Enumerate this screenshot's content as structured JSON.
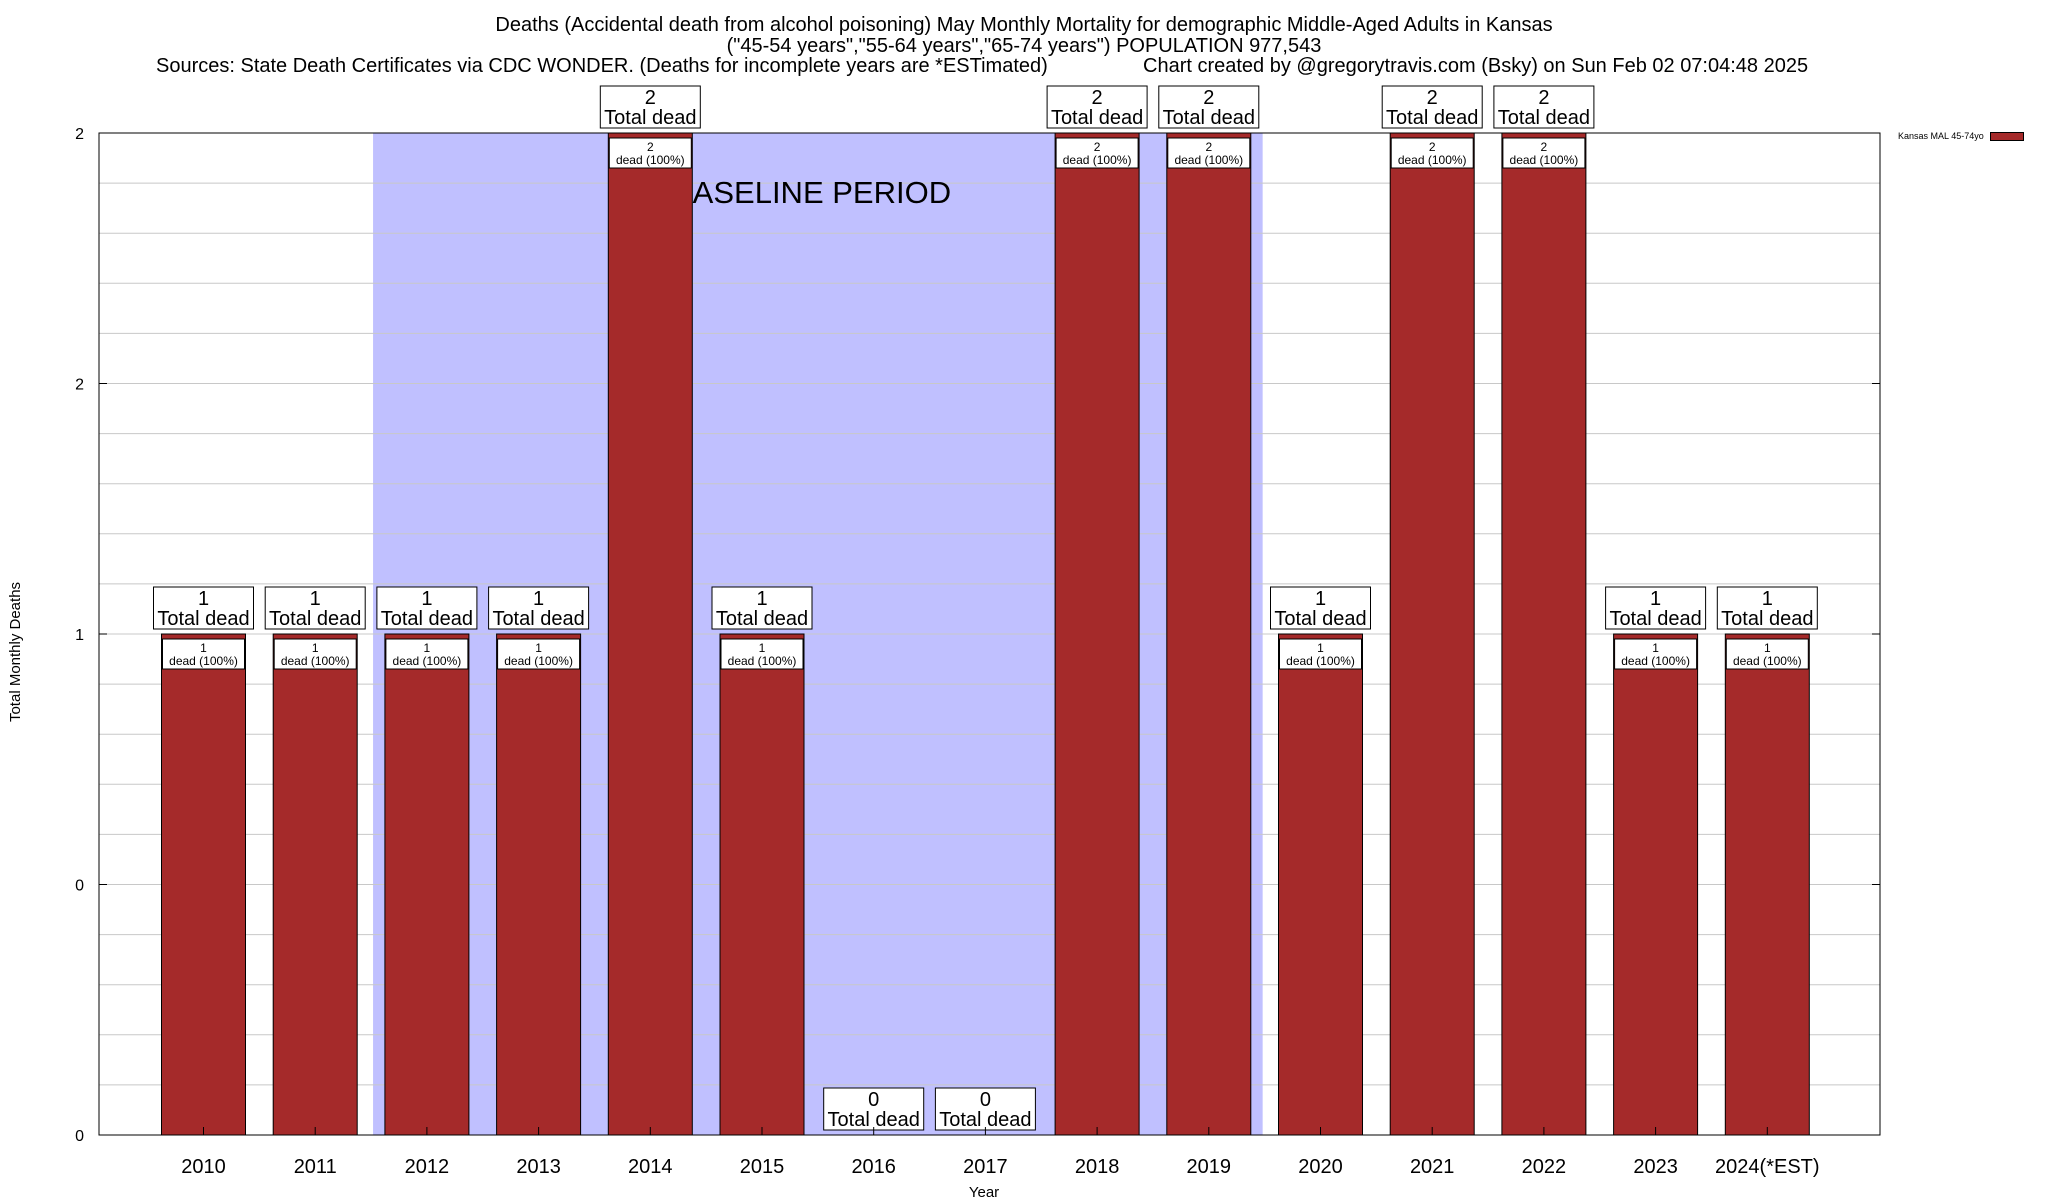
{
  "header": {
    "title_line1": "Deaths (Accidental death from alcohol poisoning) May Monthly Mortality for demographic Middle-Aged Adults in Kansas",
    "title_line2": "(\"45-54 years\",\"55-64 years\",\"65-74 years\") POPULATION 977,543",
    "sources": "Sources: State Death Certificates via CDC WONDER. (Deaths for incomplete years are *ESTimated)",
    "credit": "Chart created by @gregorytravis.com (Bsky) on Sun Feb 02 07:04:48 2025"
  },
  "legend": {
    "label": "Kansas MAL 45-74yo",
    "color": "#a52a2a"
  },
  "chart_data": {
    "type": "bar",
    "title": "Deaths (Accidental death from alcohol poisoning) May Monthly Mortality for demographic Middle-Aged Adults in Kansas",
    "xlabel": "Year",
    "ylabel": "Total Monthly Deaths",
    "categories": [
      "2010",
      "2011",
      "2012",
      "2013",
      "2014",
      "2015",
      "2016",
      "2017",
      "2018",
      "2019",
      "2020",
      "2021",
      "2022",
      "2023",
      "2024(*EST)"
    ],
    "series": [
      {
        "name": "Kansas MAL 45-74yo",
        "values": [
          1,
          1,
          1,
          1,
          2,
          1,
          0,
          0,
          2,
          2,
          1,
          2,
          2,
          1,
          1
        ]
      }
    ],
    "total_labels": [
      {
        "count": "1",
        "text": "Total dead"
      },
      {
        "count": "1",
        "text": "Total dead"
      },
      {
        "count": "1",
        "text": "Total dead"
      },
      {
        "count": "1",
        "text": "Total dead"
      },
      {
        "count": "2",
        "text": "Total dead"
      },
      {
        "count": "1",
        "text": "Total dead"
      },
      {
        "count": "0",
        "text": "Total dead"
      },
      {
        "count": "0",
        "text": "Total dead"
      },
      {
        "count": "2",
        "text": "Total dead"
      },
      {
        "count": "2",
        "text": "Total dead"
      },
      {
        "count": "1",
        "text": "Total dead"
      },
      {
        "count": "2",
        "text": "Total dead"
      },
      {
        "count": "2",
        "text": "Total dead"
      },
      {
        "count": "1",
        "text": "Total dead"
      },
      {
        "count": "1",
        "text": "Total dead"
      }
    ],
    "bar_labels": [
      {
        "count": "1",
        "text": "dead (100%)"
      },
      {
        "count": "1",
        "text": "dead (100%)"
      },
      {
        "count": "1",
        "text": "dead (100%)"
      },
      {
        "count": "1",
        "text": "dead (100%)"
      },
      {
        "count": "2",
        "text": "dead (100%)"
      },
      {
        "count": "1",
        "text": "dead (100%)"
      },
      null,
      null,
      {
        "count": "2",
        "text": "dead (100%)"
      },
      {
        "count": "2",
        "text": "dead (100%)"
      },
      {
        "count": "1",
        "text": "dead (100%)"
      },
      {
        "count": "2",
        "text": "dead (100%)"
      },
      {
        "count": "2",
        "text": "dead (100%)"
      },
      {
        "count": "1",
        "text": "dead (100%)"
      },
      {
        "count": "1",
        "text": "dead (100%)"
      }
    ],
    "y_tick_labels": [
      "0",
      "0",
      "1",
      "2",
      "2"
    ],
    "ylim": [
      0,
      2
    ],
    "baseline": {
      "label": "BASELINE PERIOD",
      "from": "2012",
      "to": "2019",
      "color": "#c0c0ff"
    },
    "bar_color": "#a52a2a",
    "grid": true,
    "legend_position": "top-right"
  }
}
